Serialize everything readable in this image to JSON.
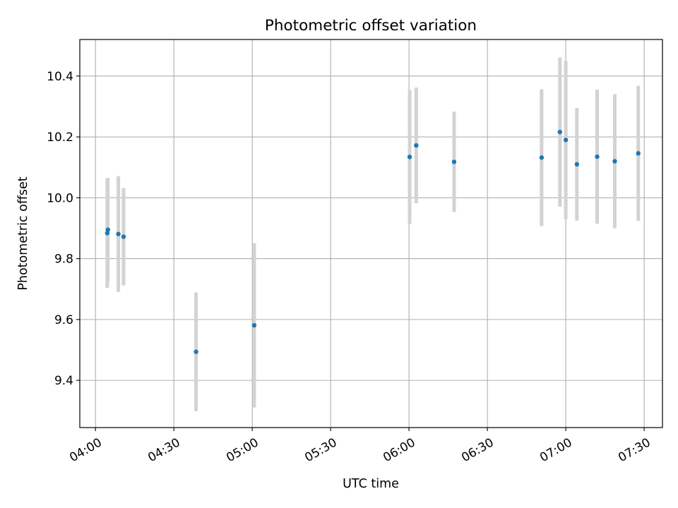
{
  "chart_data": {
    "type": "scatter",
    "title": "Photometric offset variation",
    "xlabel": "UTC time",
    "ylabel": "Photometric offset",
    "x_axis_type": "time",
    "xlim": [
      "03:54",
      "07:37"
    ],
    "ylim": [
      9.245,
      10.52
    ],
    "x_ticks": [
      "04:00",
      "04:30",
      "05:00",
      "05:30",
      "06:00",
      "06:30",
      "07:00",
      "07:30"
    ],
    "y_ticks": [
      9.4,
      9.6,
      9.8,
      10.0,
      10.2,
      10.4
    ],
    "y_tick_labels": [
      "9.4",
      "9.6",
      "9.8",
      "10.0",
      "10.2",
      "10.4"
    ],
    "grid": true,
    "point_color": "#1f77b4",
    "errorbar_color": "#d3d3d3",
    "series": [
      {
        "points": [
          {
            "x": "04:04:30",
            "y": 9.884,
            "yerr": 0.18
          },
          {
            "x": "04:04:45",
            "y": 9.895,
            "yerr": 0.17
          },
          {
            "x": "04:08:45",
            "y": 9.881,
            "yerr": 0.19
          },
          {
            "x": "04:10:45",
            "y": 9.872,
            "yerr": 0.16
          },
          {
            "x": "04:38:30",
            "y": 9.494,
            "yerr": 0.195
          },
          {
            "x": "05:00:45",
            "y": 9.581,
            "yerr": 0.27
          },
          {
            "x": "06:00:15",
            "y": 10.134,
            "yerr": 0.22
          },
          {
            "x": "06:02:45",
            "y": 10.172,
            "yerr": 0.19
          },
          {
            "x": "06:17:15",
            "y": 10.118,
            "yerr": 0.165
          },
          {
            "x": "06:50:45",
            "y": 10.132,
            "yerr": 0.225
          },
          {
            "x": "06:57:45",
            "y": 10.216,
            "yerr": 0.245
          },
          {
            "x": "07:00:00",
            "y": 10.19,
            "yerr": 0.26
          },
          {
            "x": "07:04:15",
            "y": 10.11,
            "yerr": 0.185
          },
          {
            "x": "07:12:00",
            "y": 10.135,
            "yerr": 0.22
          },
          {
            "x": "07:18:45",
            "y": 10.12,
            "yerr": 0.22
          },
          {
            "x": "07:27:45",
            "y": 10.146,
            "yerr": 0.222
          }
        ]
      }
    ]
  }
}
